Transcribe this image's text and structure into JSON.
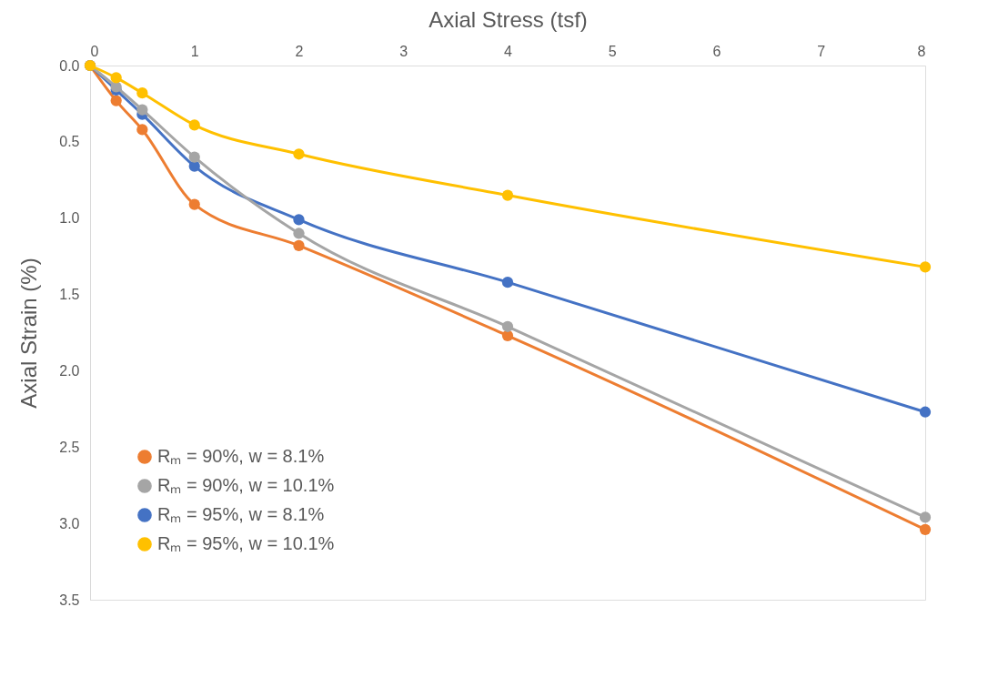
{
  "chart_data": {
    "type": "line",
    "xlabel": "Axial Stress (tsf)",
    "ylabel": "Axial Strain (%)",
    "x": [
      0,
      0.25,
      0.5,
      1,
      2,
      4,
      8
    ],
    "series": [
      {
        "name": "Rₘ = 90%, w = 8.1%",
        "color": "#ed7d31",
        "values": [
          0,
          0.23,
          0.42,
          0.91,
          1.18,
          1.77,
          3.04
        ]
      },
      {
        "name": "Rₘ = 90%, w = 10.1%",
        "color": "#a5a5a5",
        "values": [
          0,
          0.14,
          0.29,
          0.6,
          1.1,
          1.71,
          2.96
        ]
      },
      {
        "name": "Rₘ = 95%, w = 8.1%",
        "color": "#4472c4",
        "values": [
          0,
          0.16,
          0.32,
          0.66,
          1.01,
          1.42,
          2.27
        ]
      },
      {
        "name": "Rₘ = 95%, w = 10.1%",
        "color": "#ffc000",
        "values": [
          0,
          0.08,
          0.18,
          0.39,
          0.58,
          0.85,
          1.32
        ]
      }
    ],
    "xlim": [
      0,
      8
    ],
    "xticks": [
      0,
      1,
      2,
      3,
      4,
      5,
      6,
      7,
      8
    ],
    "ylim": [
      3.5,
      0
    ],
    "yticks": [
      {
        "value": 0,
        "label": "0.0"
      },
      {
        "value": 0.5,
        "label": "0.5"
      },
      {
        "value": 1,
        "label": "1.0"
      },
      {
        "value": 1.5,
        "label": "1.5"
      },
      {
        "value": 2,
        "label": "2.0"
      },
      {
        "value": 2.5,
        "label": "2.5"
      },
      {
        "value": 3,
        "label": "3.0"
      },
      {
        "value": 3.5,
        "label": "3.5"
      }
    ],
    "grid": false,
    "legend": "bottom left",
    "marker": "circle",
    "line_style": "solid"
  }
}
